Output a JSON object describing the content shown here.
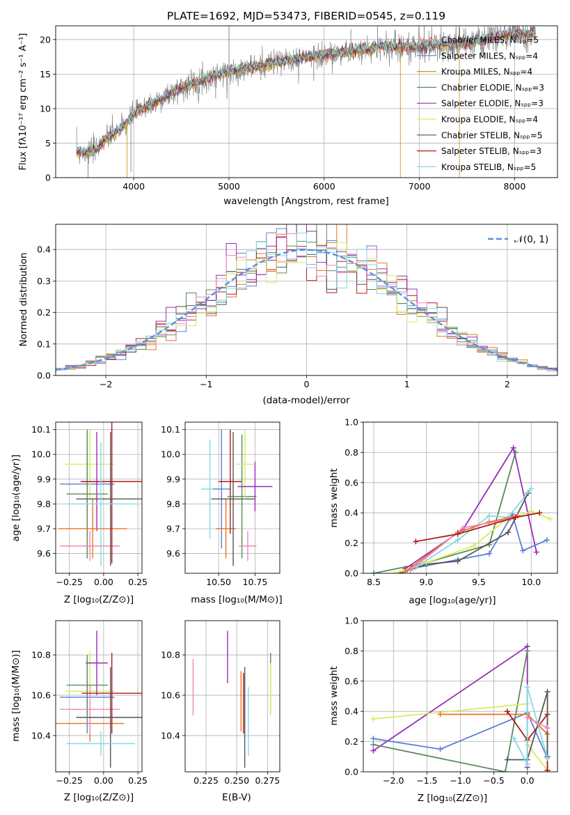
{
  "colors": {
    "chab_miles": "#ff8c7a",
    "salp_miles": "#5b7fd6",
    "krou_miles": "#c8961e",
    "chab_elodie": "#5a8a5a",
    "salp_elodie": "#9a2ab8",
    "krou_elodie": "#d4ee60",
    "chab_stelib": "#555555",
    "salp_stelib": "#b01818",
    "krou_stelib": "#7fdbe4",
    "extra_orange": "#ee7020",
    "extra_pink": "#ee88bb",
    "normal": "#5b8fdc"
  },
  "chart_data": [
    {
      "type": "line",
      "id": "spectrum",
      "title": "PLATE=1692, MJD=53473, FIBERID=0545, z=0.119",
      "xlabel": "wavelength [Angstrom, rest frame]",
      "ylabel": "Flux [fλ10⁻¹⁷ erg cm⁻² s⁻¹ A⁻¹]",
      "xlim": [
        3180,
        8450
      ],
      "ylim": [
        0,
        22
      ],
      "xticks": [
        4000,
        5000,
        6000,
        7000,
        8000
      ],
      "yticks": [
        0,
        5,
        10,
        15,
        20
      ],
      "legend_position": "top-right",
      "legend": [
        {
          "label": "Chabrier MILES, Nₛₚₚ=5",
          "color": "#ff8c7a"
        },
        {
          "label": "Salpeter MILES, Nₛₚₚ=4",
          "color": "#5b7fd6"
        },
        {
          "label": "Kroupa MILES, Nₛₚₚ=4",
          "color": "#c8961e"
        },
        {
          "label": "Chabrier ELODIE, Nₛₚₚ=3",
          "color": "#5a8a5a"
        },
        {
          "label": "Salpeter ELODIE, Nₛₚₚ=3",
          "color": "#9a2ab8"
        },
        {
          "label": "Kroupa ELODIE, Nₛₚₚ=4",
          "color": "#d4ee60"
        },
        {
          "label": "Chabrier STELIB, Nₛₚₚ=5",
          "color": "#555555"
        },
        {
          "label": "Salpeter STELIB, Nₛₚₚ=3",
          "color": "#b01818"
        },
        {
          "label": "Kroupa STELIB, Nₛₚₚ=5",
          "color": "#7fdbe4"
        }
      ],
      "continuum": {
        "x": [
          3400,
          3500,
          3600,
          3700,
          3800,
          3900,
          4000,
          4100,
          4200,
          4300,
          4400,
          4500,
          4600,
          4700,
          4800,
          4900,
          5000,
          5100,
          5200,
          5300,
          5400,
          5500,
          5600,
          5700,
          5800,
          5900,
          6000,
          6100,
          6200,
          6300,
          6400,
          6500,
          6600,
          6700,
          6800,
          6900,
          7000,
          7100,
          7200,
          7300,
          7400,
          7500,
          7600,
          7700,
          7800,
          7900,
          8000,
          8100,
          8200
        ],
        "y": [
          3.9,
          3.6,
          4.0,
          5.6,
          6.4,
          7.5,
          9.3,
          10.0,
          10.7,
          11.5,
          12.3,
          13.0,
          13.5,
          14.0,
          14.5,
          15.0,
          15.3,
          15.6,
          15.9,
          16.1,
          16.4,
          16.7,
          16.9,
          17.2,
          17.4,
          17.6,
          17.8,
          17.9,
          18.2,
          18.3,
          18.5,
          18.7,
          19.0,
          18.9,
          19.0,
          18.9,
          19.0,
          19.1,
          19.2,
          19.3,
          19.4,
          19.5,
          19.8,
          20.0,
          20.4,
          20.6,
          20.8,
          20.9,
          21.0
        ]
      },
      "spikes": [
        {
          "x": 3520,
          "y": 0
        },
        {
          "x": 3930,
          "y": 0
        },
        {
          "x": 3970,
          "y": 0.8
        },
        {
          "x": 4860,
          "y": 11.5
        },
        {
          "x": 5000,
          "y": 22
        },
        {
          "x": 5890,
          "y": 14.0
        },
        {
          "x": 6280,
          "y": 21.5
        },
        {
          "x": 6560,
          "y": 22
        },
        {
          "x": 6800,
          "y": 0
        },
        {
          "x": 7050,
          "y": 22
        },
        {
          "x": 7420,
          "y": 0
        }
      ]
    },
    {
      "type": "bar",
      "id": "residuals",
      "xlabel": "(data-model)/error",
      "ylabel": "Normed distribution",
      "xlim": [
        -2.5,
        2.5
      ],
      "ylim": [
        0,
        0.48
      ],
      "xticks": [
        -2,
        -1,
        0,
        1,
        2
      ],
      "yticks": [
        0,
        0.1,
        0.2,
        0.3,
        0.4
      ],
      "xticklabels": [
        "−2",
        "−1",
        "0",
        "1",
        "2"
      ],
      "yticklabels": [
        "0.0",
        "0.1",
        "0.2",
        "0.3",
        "0.4"
      ],
      "bin_width": 0.1,
      "legend": [
        {
          "label": "𝒩(0, 1)",
          "style": "dashed"
        }
      ],
      "legend_position": "top-right"
    },
    {
      "type": "scatter",
      "id": "age_vs_z",
      "xlabel": "Z [log₁₀(Z/Z⊙)]",
      "ylabel": "age  [log₁₀(age/yr)]",
      "xlim": [
        -0.35,
        0.28
      ],
      "ylim": [
        9.52,
        10.13
      ],
      "xticks": [
        -0.25,
        0,
        0.25
      ],
      "yticks": [
        9.6,
        9.7,
        9.8,
        9.9,
        10.0,
        10.1
      ],
      "xticklabels": [
        "−0.25",
        "0.00",
        "0.25"
      ],
      "yticklabels": [
        "9.6",
        "9.7",
        "9.8",
        "9.9",
        "10.0",
        "10.1"
      ],
      "points": [
        {
          "x": -0.12,
          "y": 9.88,
          "xerr": 0.2,
          "yerr": 0.21,
          "c": "#5b7fd6"
        },
        {
          "x": -0.1,
          "y": 9.96,
          "xerr": 0.18,
          "yerr": 0.14,
          "c": "#d4ee60"
        },
        {
          "x": -0.05,
          "y": 9.89,
          "xerr": 0.12,
          "yerr": 0.2,
          "c": "#9a2ab8"
        },
        {
          "x": -0.12,
          "y": 9.84,
          "xerr": 0.15,
          "yerr": 0.26,
          "c": "#5a8a5a"
        },
        {
          "x": -0.08,
          "y": 9.7,
          "xerr": 0.25,
          "yerr": 0.12,
          "c": "#ee7020"
        },
        {
          "x": -0.1,
          "y": 9.63,
          "xerr": 0.22,
          "yerr": 0.06,
          "c": "#ee88bb"
        },
        {
          "x": 0.06,
          "y": 9.89,
          "xerr": 0.22,
          "yerr": 0.33,
          "c": "#b01818"
        },
        {
          "x": 0.05,
          "y": 9.82,
          "xerr": 0.25,
          "yerr": 0.27,
          "c": "#555555"
        },
        {
          "x": -0.02,
          "y": 9.8,
          "xerr": 0.25,
          "yerr": 0.25,
          "c": "#7fdbe4"
        }
      ]
    },
    {
      "type": "scatter",
      "id": "age_vs_mass",
      "xlabel": "mass [log₁₀(M/M⊙)]",
      "ylabel": "",
      "xlim": [
        10.27,
        10.92
      ],
      "ylim": [
        9.52,
        10.13
      ],
      "xticks": [
        10.25,
        10.5,
        10.75
      ],
      "yticks": [
        9.6,
        9.7,
        9.8,
        9.9,
        10.0,
        10.1
      ],
      "xticklabels": [
        "10.25",
        "10.50",
        "10.75"
      ],
      "yticklabels": [
        "9.6",
        "9.7",
        "9.8",
        "9.9",
        "10.0",
        "10.1"
      ],
      "points": [
        {
          "x": 10.44,
          "y": 9.86,
          "xerr": 0.06,
          "yerr": 0.2,
          "c": "#7fdbe4"
        },
        {
          "x": 10.52,
          "y": 9.86,
          "xerr": 0.06,
          "yerr": 0.24,
          "c": "#5b7fd6"
        },
        {
          "x": 10.55,
          "y": 9.7,
          "xerr": 0.07,
          "yerr": 0.12,
          "c": "#ee7020"
        },
        {
          "x": 10.58,
          "y": 9.89,
          "xerr": 0.08,
          "yerr": 0.21,
          "c": "#b01818"
        },
        {
          "x": 10.6,
          "y": 9.82,
          "xerr": 0.15,
          "yerr": 0.27,
          "c": "#555555"
        },
        {
          "x": 10.66,
          "y": 9.83,
          "xerr": 0.1,
          "yerr": 0.25,
          "c": "#5a8a5a"
        },
        {
          "x": 10.68,
          "y": 9.96,
          "xerr": 0.06,
          "yerr": 0.14,
          "c": "#d4ee60"
        },
        {
          "x": 10.7,
          "y": 9.63,
          "xerr": 0.06,
          "yerr": 0.06,
          "c": "#ee88bb"
        },
        {
          "x": 10.75,
          "y": 9.87,
          "xerr": 0.12,
          "yerr": 0.1,
          "c": "#9a2ab8"
        }
      ]
    },
    {
      "type": "line",
      "id": "mass_weight_vs_age",
      "xlabel": "age  [log₁₀(age/yr)]",
      "ylabel": "mass weight",
      "xlim": [
        8.4,
        10.25
      ],
      "ylim": [
        0,
        1
      ],
      "xticks": [
        8.5,
        9,
        9.5,
        10
      ],
      "yticks": [
        0,
        0.2,
        0.4,
        0.6,
        0.8,
        1.0
      ],
      "xticklabels": [
        "8.5",
        "9.0",
        "9.5",
        "10.0"
      ],
      "yticklabels": [
        "0.0",
        "0.2",
        "0.4",
        "0.6",
        "0.8",
        "1.0"
      ],
      "series": [
        {
          "c": "#5a8a5a",
          "x": [
            8.5,
            9.0,
            9.6,
            9.85
          ],
          "y": [
            0.0,
            0.07,
            0.19,
            0.8
          ]
        },
        {
          "c": "#9a2ab8",
          "x": [
            8.8,
            9.35,
            9.83,
            10.05
          ],
          "y": [
            0.03,
            0.29,
            0.83,
            0.14
          ]
        },
        {
          "c": "#5b7fd6",
          "x": [
            8.85,
            9.3,
            9.6,
            9.82,
            9.92,
            10.15
          ],
          "y": [
            0.03,
            0.09,
            0.13,
            0.39,
            0.15,
            0.22
          ]
        },
        {
          "c": "#555555",
          "x": [
            8.75,
            9.0,
            9.3,
            9.78,
            9.97
          ],
          "y": [
            0.0,
            0.06,
            0.08,
            0.27,
            0.53
          ]
        },
        {
          "c": "#d4ee60",
          "x": [
            8.7,
            9.0,
            9.45,
            9.75,
            10.0,
            10.18
          ],
          "y": [
            0.0,
            0.07,
            0.18,
            0.35,
            0.41,
            0.36
          ]
        },
        {
          "c": "#7fdbe4",
          "x": [
            8.9,
            9.3,
            9.6,
            9.78,
            10.0
          ],
          "y": [
            0.04,
            0.22,
            0.38,
            0.37,
            0.56
          ]
        },
        {
          "c": "#ee7020",
          "x": [
            8.8,
            9.3,
            9.6,
            9.87
          ],
          "y": [
            0.01,
            0.27,
            0.34,
            0.38
          ]
        },
        {
          "c": "#ee88bb",
          "x": [
            8.85,
            9.35,
            9.8
          ],
          "y": [
            0.02,
            0.3,
            0.36
          ]
        },
        {
          "c": "#b01818",
          "x": [
            8.9,
            9.3,
            9.85,
            10.08
          ],
          "y": [
            0.21,
            0.26,
            0.37,
            0.4
          ]
        }
      ]
    },
    {
      "type": "scatter",
      "id": "mass_vs_z",
      "xlabel": "Z [log₁₀(Z/Z⊙)]",
      "ylabel": "mass [log₁₀(M/M⊙)]",
      "xlim": [
        -0.35,
        0.28
      ],
      "ylim": [
        10.22,
        10.97
      ],
      "xticks": [
        -0.25,
        0,
        0.25
      ],
      "yticks": [
        10.4,
        10.6,
        10.8
      ],
      "xticklabels": [
        "−0.25",
        "0.00",
        "0.25"
      ],
      "yticklabels": [
        "10.4",
        "10.6",
        "10.8"
      ],
      "points": [
        {
          "x": -0.12,
          "y": 10.59,
          "xerr": 0.2,
          "yerr": 0.18,
          "c": "#5b7fd6"
        },
        {
          "x": -0.1,
          "y": 10.62,
          "xerr": 0.18,
          "yerr": 0.2,
          "c": "#d4ee60"
        },
        {
          "x": -0.05,
          "y": 10.76,
          "xerr": 0.08,
          "yerr": 0.16,
          "c": "#9a2ab8"
        },
        {
          "x": -0.12,
          "y": 10.65,
          "xerr": 0.15,
          "yerr": 0.15,
          "c": "#5a8a5a"
        },
        {
          "x": -0.1,
          "y": 10.46,
          "xerr": 0.25,
          "yerr": 0.09,
          "c": "#ee7020"
        },
        {
          "x": -0.1,
          "y": 10.53,
          "xerr": 0.22,
          "yerr": 0.12,
          "c": "#ee88bb"
        },
        {
          "x": 0.06,
          "y": 10.61,
          "xerr": 0.22,
          "yerr": 0.2,
          "c": "#b01818"
        },
        {
          "x": 0.05,
          "y": 10.49,
          "xerr": 0.25,
          "yerr": 0.25,
          "c": "#555555"
        },
        {
          "x": -0.02,
          "y": 10.36,
          "xerr": 0.25,
          "yerr": 0.06,
          "c": "#7fdbe4"
        }
      ]
    },
    {
      "type": "scatter",
      "id": "mass_vs_ebv",
      "xlabel": "E(B-V)",
      "ylabel": "",
      "xlim": [
        0.208,
        0.285
      ],
      "ylim": [
        10.22,
        10.97
      ],
      "xticks": [
        0.225,
        0.25,
        0.275
      ],
      "yticks": [
        10.4,
        10.6,
        10.8
      ],
      "xticklabels": [
        "0.225",
        "0.250",
        "0.275"
      ],
      "yticklabels": [
        "10.4",
        "10.6",
        "10.8"
      ],
      "points": [
        {
          "x": 0.2145,
          "y": 10.64,
          "xerr": 0,
          "yerr": 0.14,
          "c": "#ee88bb"
        },
        {
          "x": 0.2425,
          "y": 10.79,
          "xerr": 0,
          "yerr": 0.13,
          "c": "#9a2ab8"
        },
        {
          "x": 0.2535,
          "y": 10.57,
          "xerr": 0,
          "yerr": 0.15,
          "c": "#ee7020"
        },
        {
          "x": 0.2555,
          "y": 10.56,
          "xerr": 0,
          "yerr": 0.15,
          "c": "#b01818"
        },
        {
          "x": 0.2565,
          "y": 10.49,
          "xerr": 0,
          "yerr": 0.25,
          "c": "#555555"
        },
        {
          "x": 0.2595,
          "y": 10.47,
          "xerr": 0,
          "yerr": 0.17,
          "c": "#7fdbe4"
        },
        {
          "x": 0.2775,
          "y": 10.66,
          "xerr": 0,
          "yerr": 0.15,
          "c": "#5a8a5a"
        },
        {
          "x": 0.2775,
          "y": 10.63,
          "xerr": 0,
          "yerr": 0.13,
          "c": "#d4ee60"
        }
      ]
    },
    {
      "type": "line",
      "id": "mass_weight_vs_z",
      "xlabel": "Z [log₁₀(Z/Z⊙)]",
      "ylabel": "mass weight",
      "xlim": [
        -2.45,
        0.45
      ],
      "ylim": [
        0,
        1
      ],
      "xticks": [
        -2,
        -1.5,
        -1,
        -0.5,
        0
      ],
      "yticks": [
        0,
        0.2,
        0.4,
        0.6,
        0.8,
        1.0
      ],
      "xticklabels": [
        "−2.0",
        "−1.5",
        "−1.0",
        "−0.5",
        "0.0"
      ],
      "yticklabels": [
        "0.0",
        "0.2",
        "0.4",
        "0.6",
        "0.8",
        "1.0"
      ],
      "series": [
        {
          "c": "#9a2ab8",
          "x": [
            -2.3,
            0.0,
            0.0
          ],
          "y": [
            0.14,
            0.83,
            0.03
          ]
        },
        {
          "c": "#5a8a5a",
          "x": [
            -2.3,
            -0.33,
            0.0
          ],
          "y": [
            0.18,
            0.0,
            0.8
          ]
        },
        {
          "c": "#d4ee60",
          "x": [
            -2.3,
            0.0,
            0.0,
            0.3
          ],
          "y": [
            0.35,
            0.45,
            0.18,
            0.01
          ]
        },
        {
          "c": "#5b7fd6",
          "x": [
            -2.3,
            -1.3,
            0.0,
            0.3
          ],
          "y": [
            0.22,
            0.15,
            0.39,
            0.09
          ]
        },
        {
          "c": "#ee7020",
          "x": [
            -1.3,
            0.0,
            0.3,
            0.3
          ],
          "y": [
            0.38,
            0.38,
            0.25,
            0.01
          ]
        },
        {
          "c": "#b01818",
          "x": [
            -0.3,
            0.0,
            0.3,
            0.3
          ],
          "y": [
            0.4,
            0.21,
            0.38,
            0.01
          ]
        },
        {
          "c": "#555555",
          "x": [
            -0.3,
            0.0,
            0.3,
            0.3
          ],
          "y": [
            0.08,
            0.08,
            0.53,
            0.1
          ]
        },
        {
          "c": "#7fdbe4",
          "x": [
            -0.2,
            0.0,
            0.0,
            0.3
          ],
          "y": [
            0.22,
            0.05,
            0.56,
            0.09
          ]
        },
        {
          "c": "#ee88bb",
          "x": [
            0.0,
            0.3
          ],
          "y": [
            0.36,
            0.29
          ]
        }
      ]
    }
  ]
}
